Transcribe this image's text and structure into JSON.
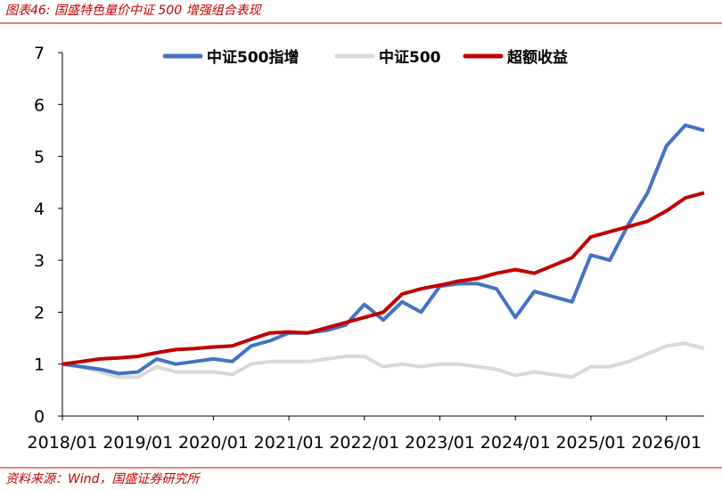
{
  "chart_data": {
    "type": "line",
    "title": "图表46:  国盛特色量价中证 500 增强组合表现",
    "source": "资料来源：Wind，国盛证券研究所",
    "x": [
      "2018/01",
      "2018/04",
      "2018/07",
      "2018/10",
      "2019/01",
      "2019/04",
      "2019/07",
      "2019/10",
      "2020/01",
      "2020/04",
      "2020/07",
      "2020/10",
      "2021/01",
      "2021/04",
      "2021/07",
      "2021/10",
      "2022/01",
      "2022/04",
      "2022/07",
      "2022/10",
      "2023/01",
      "2023/04",
      "2023/07",
      "2023/10",
      "2024/01",
      "2024/04",
      "2024/07",
      "2024/10",
      "2025/01",
      "2025/04",
      "2025/07",
      "2025/10",
      "2026/01",
      "2026/04",
      "2026/07"
    ],
    "xlim": [
      "2018/01",
      "2026/07"
    ],
    "xticks": [
      "2018/01",
      "2019/01",
      "2020/01",
      "2021/01",
      "2022/01",
      "2023/01",
      "2024/01",
      "2025/01",
      "2026/01"
    ],
    "ylim": [
      0,
      7
    ],
    "yticks": [
      0,
      1,
      2,
      3,
      4,
      5,
      6,
      7
    ],
    "series": [
      {
        "name": "中证500指增",
        "color": "#4472c4",
        "values": [
          1.0,
          0.95,
          0.9,
          0.82,
          0.85,
          1.1,
          1.0,
          1.05,
          1.1,
          1.05,
          1.35,
          1.45,
          1.6,
          1.6,
          1.65,
          1.75,
          2.15,
          1.85,
          2.2,
          2.0,
          2.5,
          2.55,
          2.55,
          2.45,
          1.9,
          2.4,
          2.3,
          2.2,
          3.1,
          3.0,
          3.7,
          4.3,
          5.2,
          5.6,
          5.5
        ]
      },
      {
        "name": "中证500",
        "color": "#d9d9d9",
        "values": [
          1.0,
          0.95,
          0.85,
          0.75,
          0.75,
          0.95,
          0.85,
          0.85,
          0.85,
          0.8,
          1.0,
          1.05,
          1.05,
          1.05,
          1.1,
          1.15,
          1.15,
          0.95,
          1.0,
          0.95,
          1.0,
          1.0,
          0.95,
          0.9,
          0.78,
          0.85,
          0.8,
          0.75,
          0.95,
          0.95,
          1.05,
          1.2,
          1.35,
          1.4,
          1.3
        ]
      },
      {
        "name": "超额收益",
        "color": "#c00000",
        "values": [
          1.0,
          1.05,
          1.1,
          1.12,
          1.15,
          1.22,
          1.28,
          1.3,
          1.33,
          1.35,
          1.48,
          1.6,
          1.62,
          1.6,
          1.7,
          1.8,
          1.9,
          2.0,
          2.35,
          2.45,
          2.52,
          2.6,
          2.65,
          2.75,
          2.82,
          2.75,
          2.9,
          3.05,
          3.45,
          3.55,
          3.65,
          3.75,
          3.95,
          4.2,
          4.3
        ]
      }
    ]
  }
}
